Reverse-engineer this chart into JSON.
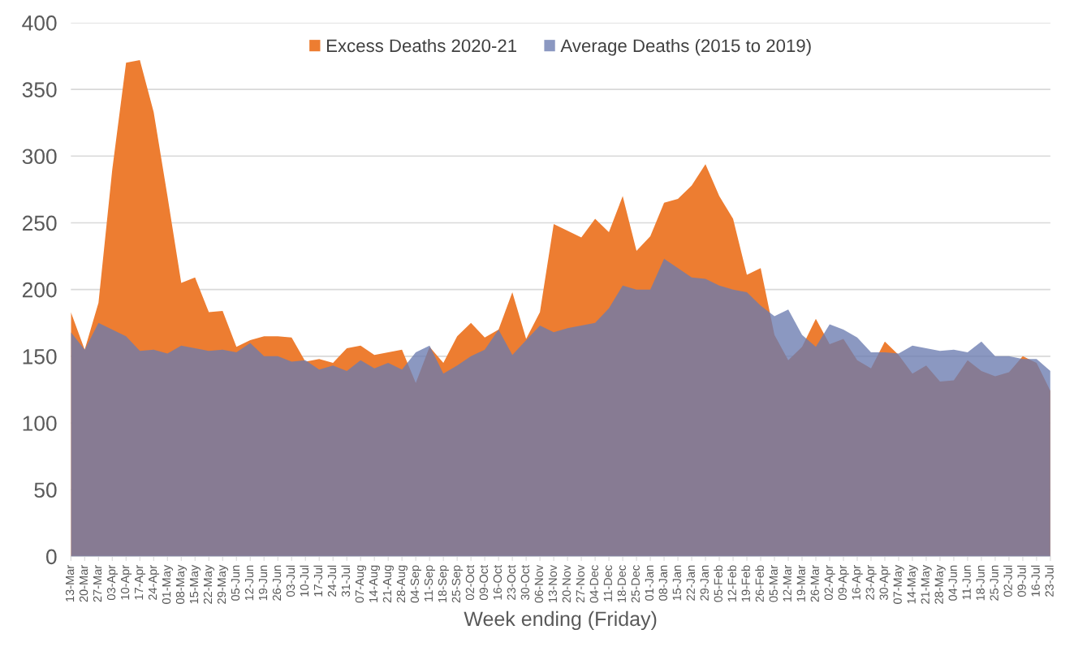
{
  "chart_data": {
    "type": "area",
    "xlabel": "Week ending (Friday)",
    "categories": [
      "13-Mar",
      "20-Mar",
      "27-Mar",
      "03-Apr",
      "10-Apr",
      "17-Apr",
      "24-Apr",
      "01-May",
      "08-May",
      "15-May",
      "22-May",
      "29-May",
      "05-Jun",
      "12-Jun",
      "19-Jun",
      "26-Jun",
      "03-Jul",
      "10-Jul",
      "17-Jul",
      "24-Jul",
      "31-Jul",
      "07-Aug",
      "14-Aug",
      "21-Aug",
      "28-Aug",
      "04-Sep",
      "11-Sep",
      "18-Sep",
      "25-Sep",
      "02-Oct",
      "09-Oct",
      "16-Oct",
      "23-Oct",
      "30-Oct",
      "06-Nov",
      "13-Nov",
      "20-Nov",
      "27-Nov",
      "04-Dec",
      "11-Dec",
      "18-Dec",
      "25-Dec",
      "01-Jan",
      "08-Jan",
      "15-Jan",
      "22-Jan",
      "29-Jan",
      "05-Feb",
      "12-Feb",
      "19-Feb",
      "26-Feb",
      "05-Mar",
      "12-Mar",
      "19-Mar",
      "26-Mar",
      "02-Apr",
      "09-Apr",
      "16-Apr",
      "23-Apr",
      "30-Apr",
      "07-May",
      "14-May",
      "21-May",
      "28-May",
      "04-Jun",
      "11-Jun",
      "18-Jun",
      "25-Jun",
      "02-Jul",
      "09-Jul",
      "16-Jul",
      "23-Jul"
    ],
    "series": [
      {
        "name": "Excess Deaths 2020-21",
        "color": "#ed7d31",
        "values": [
          183,
          155,
          190,
          290,
          370,
          372,
          333,
          270,
          205,
          209,
          183,
          184,
          157,
          162,
          165,
          165,
          164,
          146,
          148,
          145,
          156,
          158,
          151,
          153,
          155,
          130,
          157,
          145,
          165,
          175,
          164,
          170,
          198,
          163,
          183,
          249,
          244,
          239,
          253,
          243,
          270,
          229,
          240,
          265,
          268,
          278,
          294,
          270,
          253,
          211,
          216,
          166,
          147,
          157,
          178,
          159,
          163,
          147,
          141,
          161,
          151,
          137,
          143,
          131,
          132,
          147,
          139,
          135,
          138,
          150,
          145,
          124
        ]
      },
      {
        "name": "Average Deaths (2015 to 2019)",
        "color": "#6a7bb0",
        "values": [
          168,
          155,
          175,
          170,
          165,
          154,
          155,
          152,
          158,
          156,
          154,
          155,
          153,
          160,
          150,
          150,
          146,
          147,
          140,
          143,
          139,
          147,
          141,
          145,
          140,
          153,
          158,
          137,
          143,
          150,
          155,
          170,
          151,
          162,
          173,
          168,
          171,
          173,
          175,
          186,
          203,
          200,
          200,
          223,
          216,
          209,
          208,
          203,
          200,
          198,
          188,
          180,
          185,
          166,
          157,
          174,
          170,
          164,
          153,
          153,
          152,
          158,
          156,
          154,
          155,
          153,
          161,
          150,
          150,
          148,
          148,
          139
        ]
      }
    ],
    "ylim": [
      0,
      400
    ],
    "yticks": [
      0,
      50,
      100,
      150,
      200,
      250,
      300,
      350,
      400
    ],
    "grid": "y",
    "legend": "top"
  }
}
